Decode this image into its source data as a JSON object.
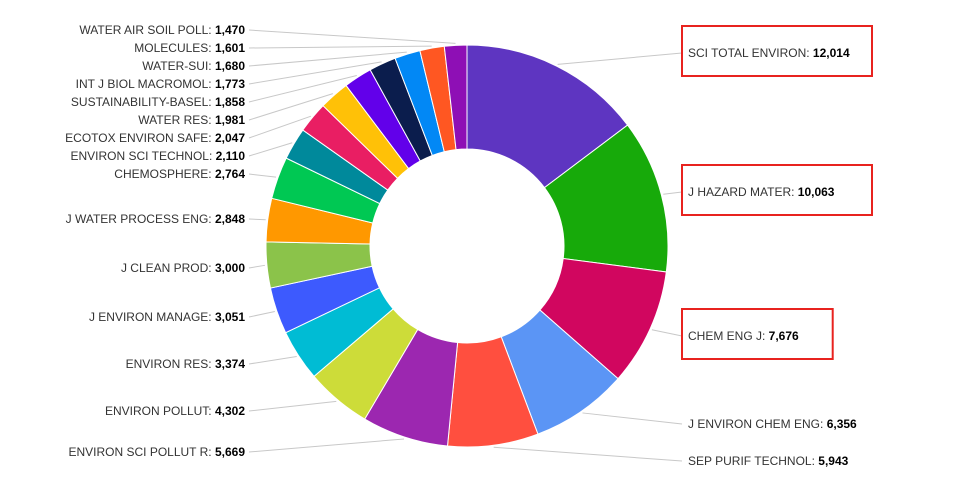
{
  "chart_data": {
    "type": "pie",
    "donut": true,
    "title": "",
    "legend": "none",
    "slices": [
      {
        "label": "SCI TOTAL ENVIRON",
        "value": 12014,
        "value_text": "12,014",
        "color": "#5e35c1",
        "highlighted": true
      },
      {
        "label": "J HAZARD MATER",
        "value": 10063,
        "value_text": "10,063",
        "color": "#17aa0a",
        "highlighted": true
      },
      {
        "label": "CHEM ENG J",
        "value": 7676,
        "value_text": "7,676",
        "color": "#d1065f",
        "highlighted": true
      },
      {
        "label": "J ENVIRON CHEM ENG",
        "value": 6356,
        "value_text": "6,356",
        "color": "#5b95f5",
        "highlighted": false
      },
      {
        "label": "SEP PURIF TECHNOL",
        "value": 5943,
        "value_text": "5,943",
        "color": "#ff4f3f",
        "highlighted": false
      },
      {
        "label": "ENVIRON SCI POLLUT R",
        "value": 5669,
        "value_text": "5,669",
        "color": "#9c27b0",
        "highlighted": false
      },
      {
        "label": "ENVIRON POLLUT",
        "value": 4302,
        "value_text": "4,302",
        "color": "#cddc39",
        "highlighted": false
      },
      {
        "label": "ENVIRON RES",
        "value": 3374,
        "value_text": "3,374",
        "color": "#00bcd4",
        "highlighted": false
      },
      {
        "label": "J ENVIRON MANAGE",
        "value": 3051,
        "value_text": "3,051",
        "color": "#3d5afe",
        "highlighted": false
      },
      {
        "label": "J CLEAN PROD",
        "value": 3000,
        "value_text": "3,000",
        "color": "#8bc34a",
        "highlighted": false
      },
      {
        "label": "J WATER PROCESS ENG",
        "value": 2848,
        "value_text": "2,848",
        "color": "#ff9800",
        "highlighted": false
      },
      {
        "label": "CHEMOSPHERE",
        "value": 2764,
        "value_text": "2,764",
        "color": "#00c853",
        "highlighted": false
      },
      {
        "label": "ENVIRON SCI TECHNOL",
        "value": 2110,
        "value_text": "2,110",
        "color": "#00899b",
        "highlighted": false
      },
      {
        "label": "ECOTOX ENVIRON SAFE",
        "value": 2047,
        "value_text": "2,047",
        "color": "#e91e63",
        "highlighted": false
      },
      {
        "label": "WATER RES",
        "value": 1981,
        "value_text": "1,981",
        "color": "#ffc107",
        "highlighted": false
      },
      {
        "label": "SUSTAINABILITY-BASEL",
        "value": 1858,
        "value_text": "1,858",
        "color": "#6200ea",
        "highlighted": false
      },
      {
        "label": "INT J BIOL MACROMOL",
        "value": 1773,
        "value_text": "1,773",
        "color": "#0b1d4d",
        "highlighted": false
      },
      {
        "label": "WATER-SUI",
        "value": 1680,
        "value_text": "1,680",
        "color": "#0288f5",
        "highlighted": false
      },
      {
        "label": "MOLECULES",
        "value": 1601,
        "value_text": "1,601",
        "color": "#ff5722",
        "highlighted": false
      },
      {
        "label": "WATER AIR SOIL POLL",
        "value": 1470,
        "value_text": "1,470",
        "color": "#8e0fb5",
        "highlighted": false
      }
    ]
  }
}
